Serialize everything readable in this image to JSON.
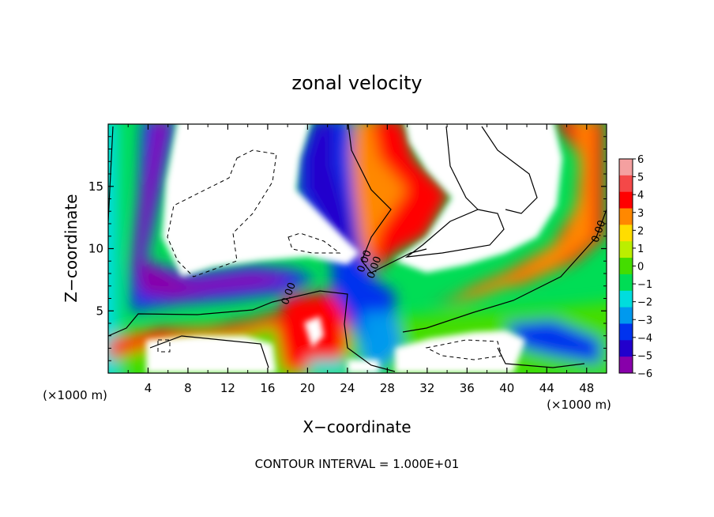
{
  "chart_data": {
    "type": "heatmap",
    "title": "zonal velocity",
    "xlabel": "X−coordinate",
    "ylabel": "Z−coordinate",
    "x_unit_left": "(×1000 m)",
    "x_unit_right": "(×1000 m)",
    "footer": "CONTOUR INTERVAL = 1.000E+01",
    "xlim": [
      0,
      50
    ],
    "ylim": [
      0,
      20
    ],
    "x_ticks": [
      4,
      8,
      12,
      16,
      20,
      24,
      28,
      32,
      36,
      40,
      44,
      48
    ],
    "y_ticks": [
      5,
      10,
      15
    ],
    "colorbar": {
      "range": [
        -6,
        6
      ],
      "levels": [
        6,
        5,
        4,
        3,
        2,
        1,
        0,
        -1,
        -2,
        -3,
        -4,
        -5,
        -6
      ],
      "level_labels": [
        "6",
        "5",
        "4",
        "3",
        "2",
        "1",
        "0",
        "−1",
        "−2",
        "−3",
        "−4",
        "−5",
        "−6"
      ],
      "colors": [
        "#f4a0a0",
        "#f44848",
        "#ff0000",
        "#ff8800",
        "#ffdd00",
        "#bbee00",
        "#44dd00",
        "#00dd55",
        "#00dddd",
        "#0099ee",
        "#0033ee",
        "#2200cc",
        "#8800aa"
      ]
    },
    "contour_labels": [
      {
        "text": "0.00",
        "x": 49.5,
        "y": 11.3
      },
      {
        "text": "0.00",
        "x": 27.0,
        "y": 8.4
      },
      {
        "text": "0.00",
        "x": 26.0,
        "y": 8.9
      },
      {
        "text": "0.00",
        "x": 18.4,
        "y": 6.3
      }
    ]
  }
}
